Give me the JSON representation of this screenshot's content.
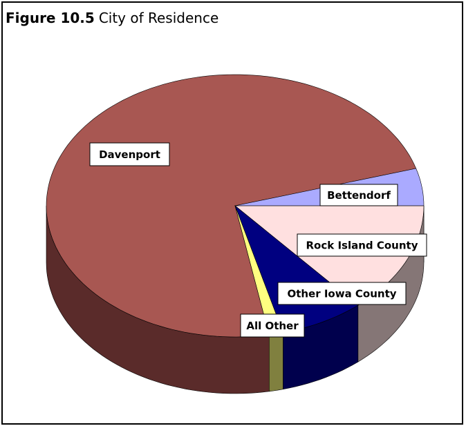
{
  "chart_data": {
    "type": "pie3d",
    "figure_label": "Figure 10.5",
    "title": "City of Residence",
    "categories": [
      "Davenport",
      "Bettendorf",
      "Rock Island County",
      "Other Iowa County",
      "All Other"
    ],
    "values": [
      73.3,
      4.6,
      13.7,
      7.2,
      1.2
    ],
    "colors": [
      "#a85752",
      "#aaaaff",
      "#ffe0e0",
      "#000080",
      "#ffff80"
    ],
    "side_colors": [
      "#5a2b2a",
      "#6a6a99",
      "#857676",
      "#00004d",
      "#80803f"
    ]
  }
}
